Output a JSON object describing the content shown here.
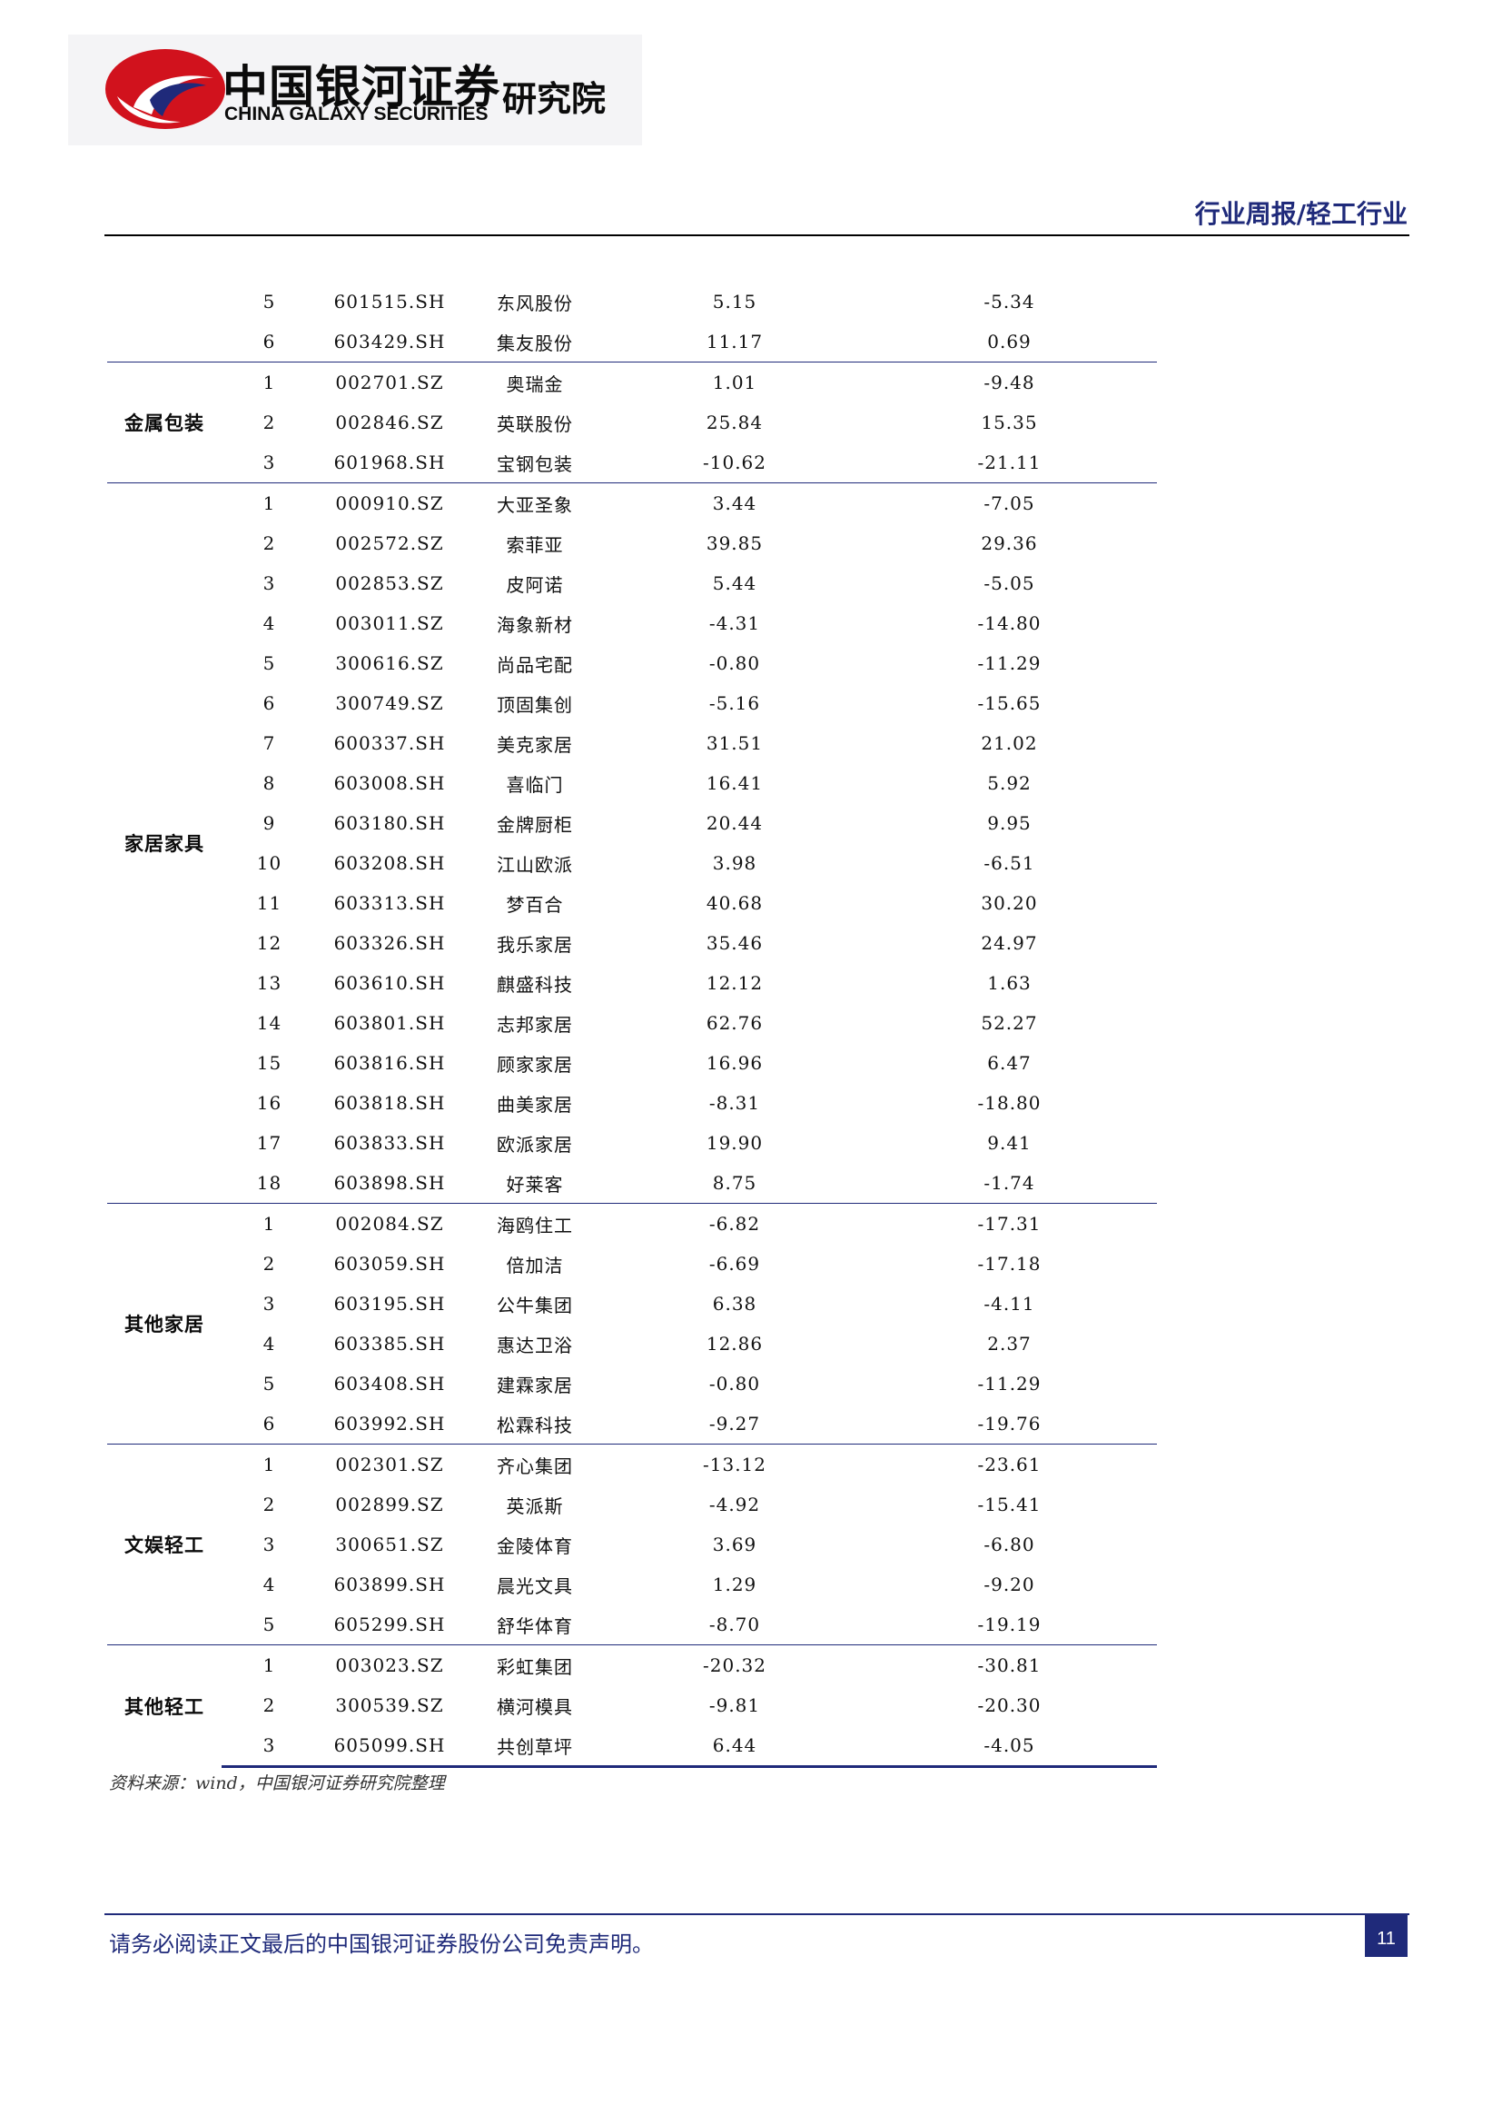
{
  "header": {
    "logo_cn": "中国银河证券",
    "logo_en": "CHINA GALAXY SECURITIES",
    "logo_institute": "研究院",
    "report_type": "行业周报/轻工行业"
  },
  "colors": {
    "accent": "#1f2a7a",
    "logo_red": "#d1121d",
    "logo_blue": "#1f2a7a"
  },
  "table": {
    "groups": [
      {
        "category": "",
        "rows": [
          [
            "5",
            "601515.SH",
            "东风股份",
            "5.15",
            "-5.34"
          ],
          [
            "6",
            "603429.SH",
            "集友股份",
            "11.17",
            "0.69"
          ]
        ]
      },
      {
        "category": "金属包装",
        "rows": [
          [
            "1",
            "002701.SZ",
            "奥瑞金",
            "1.01",
            "-9.48"
          ],
          [
            "2",
            "002846.SZ",
            "英联股份",
            "25.84",
            "15.35"
          ],
          [
            "3",
            "601968.SH",
            "宝钢包装",
            "-10.62",
            "-21.11"
          ]
        ]
      },
      {
        "category": "家居家具",
        "rows": [
          [
            "1",
            "000910.SZ",
            "大亚圣象",
            "3.44",
            "-7.05"
          ],
          [
            "2",
            "002572.SZ",
            "索菲亚",
            "39.85",
            "29.36"
          ],
          [
            "3",
            "002853.SZ",
            "皮阿诺",
            "5.44",
            "-5.05"
          ],
          [
            "4",
            "003011.SZ",
            "海象新材",
            "-4.31",
            "-14.80"
          ],
          [
            "5",
            "300616.SZ",
            "尚品宅配",
            "-0.80",
            "-11.29"
          ],
          [
            "6",
            "300749.SZ",
            "顶固集创",
            "-5.16",
            "-15.65"
          ],
          [
            "7",
            "600337.SH",
            "美克家居",
            "31.51",
            "21.02"
          ],
          [
            "8",
            "603008.SH",
            "喜临门",
            "16.41",
            "5.92"
          ],
          [
            "9",
            "603180.SH",
            "金牌厨柜",
            "20.44",
            "9.95"
          ],
          [
            "10",
            "603208.SH",
            "江山欧派",
            "3.98",
            "-6.51"
          ],
          [
            "11",
            "603313.SH",
            "梦百合",
            "40.68",
            "30.20"
          ],
          [
            "12",
            "603326.SH",
            "我乐家居",
            "35.46",
            "24.97"
          ],
          [
            "13",
            "603610.SH",
            "麒盛科技",
            "12.12",
            "1.63"
          ],
          [
            "14",
            "603801.SH",
            "志邦家居",
            "62.76",
            "52.27"
          ],
          [
            "15",
            "603816.SH",
            "顾家家居",
            "16.96",
            "6.47"
          ],
          [
            "16",
            "603818.SH",
            "曲美家居",
            "-8.31",
            "-18.80"
          ],
          [
            "17",
            "603833.SH",
            "欧派家居",
            "19.90",
            "9.41"
          ],
          [
            "18",
            "603898.SH",
            "好莱客",
            "8.75",
            "-1.74"
          ]
        ]
      },
      {
        "category": "其他家居",
        "rows": [
          [
            "1",
            "002084.SZ",
            "海鸥住工",
            "-6.82",
            "-17.31"
          ],
          [
            "2",
            "603059.SH",
            "倍加洁",
            "-6.69",
            "-17.18"
          ],
          [
            "3",
            "603195.SH",
            "公牛集团",
            "6.38",
            "-4.11"
          ],
          [
            "4",
            "603385.SH",
            "惠达卫浴",
            "12.86",
            "2.37"
          ],
          [
            "5",
            "603408.SH",
            "建霖家居",
            "-0.80",
            "-11.29"
          ],
          [
            "6",
            "603992.SH",
            "松霖科技",
            "-9.27",
            "-19.76"
          ]
        ]
      },
      {
        "category": "文娱轻工",
        "rows": [
          [
            "1",
            "002301.SZ",
            "齐心集团",
            "-13.12",
            "-23.61"
          ],
          [
            "2",
            "002899.SZ",
            "英派斯",
            "-4.92",
            "-15.41"
          ],
          [
            "3",
            "300651.SZ",
            "金陵体育",
            "3.69",
            "-6.80"
          ],
          [
            "4",
            "603899.SH",
            "晨光文具",
            "1.29",
            "-9.20"
          ],
          [
            "5",
            "605299.SH",
            "舒华体育",
            "-8.70",
            "-19.19"
          ]
        ]
      },
      {
        "category": "其他轻工",
        "rows": [
          [
            "1",
            "003023.SZ",
            "彩虹集团",
            "-20.32",
            "-30.81"
          ],
          [
            "2",
            "300539.SZ",
            "横河模具",
            "-9.81",
            "-20.30"
          ],
          [
            "3",
            "605099.SH",
            "共创草坪",
            "6.44",
            "-4.05"
          ]
        ]
      }
    ]
  },
  "source": "资料来源：wind，中国银河证券研究院整理",
  "footer": {
    "disclaimer": "请务必阅读正文最后的中国银河证券股份公司免责声明。",
    "page_number": "11"
  }
}
